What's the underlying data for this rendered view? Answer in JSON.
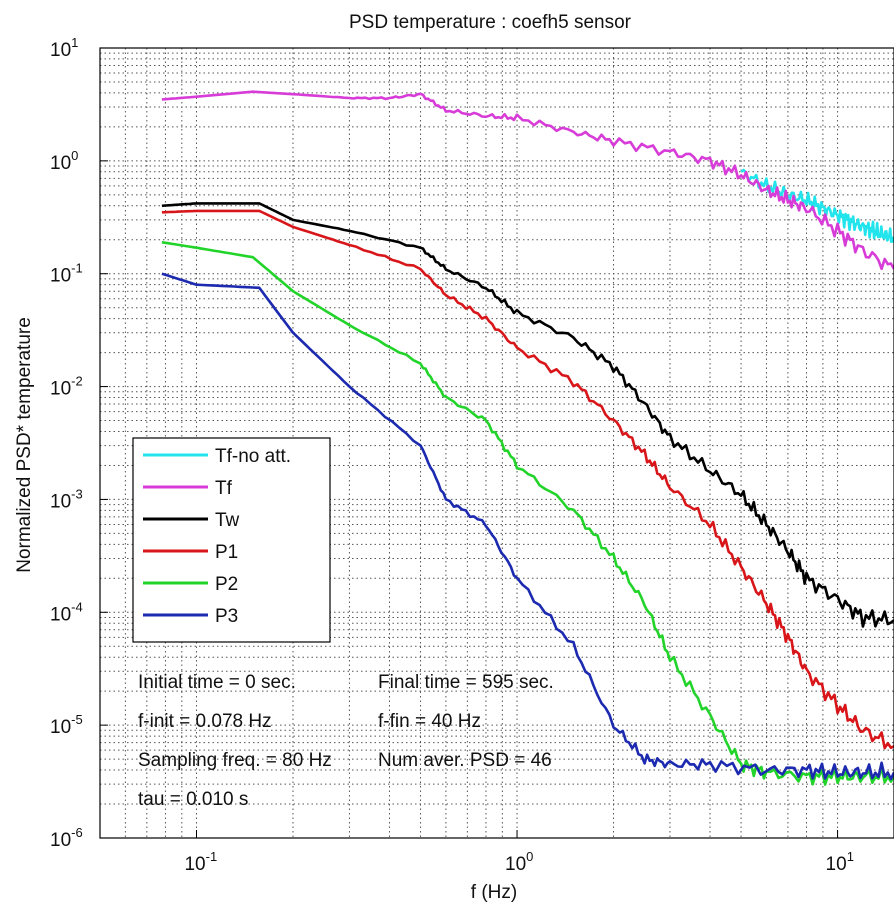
{
  "chart_data": {
    "type": "line",
    "title": "PSD temperature  : coefh5 sensor",
    "xlabel": "f (Hz)",
    "ylabel": "Normalized PSD* temperature",
    "x_scale": "log",
    "y_scale": "log",
    "xlim": [
      0.05,
      15
    ],
    "ylim": [
      1e-06,
      10
    ],
    "grid": true,
    "x_ticks": [
      {
        "value": 0.1,
        "base": "10",
        "exp": "-1"
      },
      {
        "value": 1,
        "base": "10",
        "exp": "0"
      },
      {
        "value": 10,
        "base": "10",
        "exp": "1"
      }
    ],
    "y_ticks": [
      {
        "value": 10,
        "base": "10",
        "exp": "1"
      },
      {
        "value": 1,
        "base": "10",
        "exp": "0"
      },
      {
        "value": 0.1,
        "base": "10",
        "exp": "-1"
      },
      {
        "value": 0.01,
        "base": "10",
        "exp": "-2"
      },
      {
        "value": 0.001,
        "base": "10",
        "exp": "-3"
      },
      {
        "value": 0.0001,
        "base": "10",
        "exp": "-4"
      },
      {
        "value": 1e-05,
        "base": "10",
        "exp": "-5"
      },
      {
        "value": 1e-06,
        "base": "10",
        "exp": "-6"
      }
    ],
    "legend": {
      "position": "bottom-left"
    },
    "annotations": [
      "Initial time = 0 sec.",
      "Final time = 595 sec.",
      "f-init = 0.078 Hz",
      "f-fin = 40 Hz",
      "Sampling freq. = 80 Hz",
      "Num aver. PSD = 46",
      "tau = 0.010 s"
    ],
    "series": [
      {
        "name": "Tf-no att.",
        "color": "#22e4ec",
        "x": [
          5.0,
          6.0,
          7.0,
          8.0,
          9.0,
          10.0,
          11.0,
          12.0,
          13.0,
          14.0,
          15.0
        ],
        "y": [
          0.8,
          0.6,
          0.5,
          0.45,
          0.38,
          0.33,
          0.29,
          0.26,
          0.24,
          0.22,
          0.21
        ]
      },
      {
        "name": "Tf",
        "color": "#d83cd8",
        "x": [
          0.078,
          0.1,
          0.15,
          0.2,
          0.3,
          0.4,
          0.5,
          0.6,
          0.8,
          1.0,
          1.5,
          2.0,
          3.0,
          4.0,
          5.0,
          6.0,
          7.0,
          8.0,
          10.0,
          12.0,
          15.0
        ],
        "y": [
          3.5,
          3.7,
          4.1,
          3.9,
          3.6,
          3.6,
          3.9,
          2.8,
          2.5,
          2.4,
          1.8,
          1.5,
          1.2,
          1.0,
          0.75,
          0.55,
          0.45,
          0.38,
          0.24,
          0.16,
          0.11
        ]
      },
      {
        "name": "Tw",
        "color": "#000000",
        "x": [
          0.078,
          0.1,
          0.157,
          0.2,
          0.3,
          0.5,
          0.6,
          0.8,
          1.0,
          1.5,
          2.0,
          2.5,
          3.0,
          4.0,
          5.0,
          6.0,
          7.0,
          8.0,
          10.0,
          12.0,
          15.0
        ],
        "y": [
          0.4,
          0.42,
          0.42,
          0.3,
          0.24,
          0.17,
          0.11,
          0.075,
          0.045,
          0.027,
          0.015,
          0.007,
          0.0035,
          0.0018,
          0.0011,
          0.0006,
          0.00035,
          0.0002,
          0.00013,
          9e-05,
          8.5e-05
        ]
      },
      {
        "name": "P1",
        "color": "#d8161a",
        "x": [
          0.078,
          0.1,
          0.157,
          0.2,
          0.3,
          0.5,
          0.6,
          0.8,
          1.0,
          1.5,
          2.0,
          2.5,
          3.0,
          4.0,
          5.0,
          6.0,
          7.0,
          8.0,
          10.0,
          12.0,
          15.0
        ],
        "y": [
          0.35,
          0.36,
          0.36,
          0.26,
          0.18,
          0.11,
          0.065,
          0.04,
          0.022,
          0.011,
          0.005,
          0.0025,
          0.0013,
          0.0006,
          0.00025,
          0.00012,
          6e-05,
          3e-05,
          1.5e-05,
          9e-06,
          6.5e-06
        ]
      },
      {
        "name": "P2",
        "color": "#22d42a",
        "x": [
          0.078,
          0.1,
          0.15,
          0.2,
          0.3,
          0.5,
          0.6,
          0.8,
          1.0,
          1.5,
          2.0,
          2.5,
          3.0,
          4.0,
          5.0,
          6.0,
          8.0,
          10.0,
          12.0,
          15.0
        ],
        "y": [
          0.19,
          0.17,
          0.14,
          0.07,
          0.035,
          0.016,
          0.008,
          0.005,
          0.002,
          0.0008,
          0.0003,
          0.00012,
          4e-05,
          1.2e-05,
          4.5e-06,
          3.8e-06,
          3.5e-06,
          3.5e-06,
          3.5e-06,
          3.5e-06
        ]
      },
      {
        "name": "P3",
        "color": "#1c2ab0",
        "x": [
          0.078,
          0.1,
          0.157,
          0.2,
          0.3,
          0.5,
          0.6,
          0.8,
          1.0,
          1.5,
          2.0,
          2.5,
          3.0,
          4.0,
          6.0,
          8.0,
          10.0,
          12.0,
          15.0
        ],
        "y": [
          0.1,
          0.08,
          0.075,
          0.03,
          0.01,
          0.003,
          0.001,
          0.0006,
          0.0002,
          5e-05,
          1e-05,
          5e-06,
          4.5e-06,
          4.5e-06,
          4e-06,
          4e-06,
          3.8e-06,
          3.8e-06,
          3.8e-06
        ]
      }
    ]
  }
}
